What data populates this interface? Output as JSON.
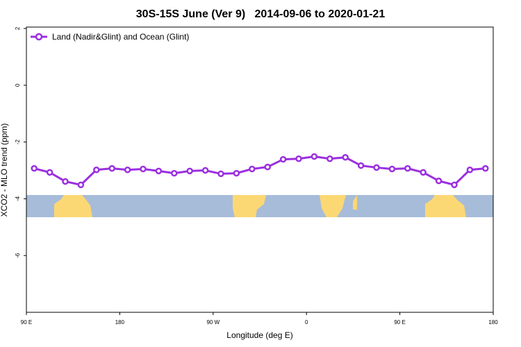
{
  "chart_data": {
    "type": "line",
    "title": "30S-15S June (Ver 9)   2014-09-06 to 2020-01-21",
    "x_label": "Longitude (deg E)",
    "y_label": "XCO2 - MLO trend (ppm)",
    "x": [
      97.5,
      112.5,
      127.5,
      142.5,
      157.5,
      172.5,
      187.5,
      202.5,
      217.5,
      232.5,
      247.5,
      262.5,
      277.5,
      292.5,
      307.5,
      322.5,
      337.5,
      352.5,
      367.5,
      382.5,
      397.5,
      412.5,
      427.5,
      442.5,
      457.5,
      472.5,
      487.5,
      502.5,
      517.5,
      532.5
    ],
    "series": [
      {
        "name": "Land (Nadir&Glint) and Ocean (Glint)",
        "color": "#9a2fe0",
        "values": [
          -2.93,
          -3.07,
          -3.39,
          -3.51,
          -2.98,
          -2.93,
          -2.98,
          -2.95,
          -3.02,
          -3.1,
          -3.02,
          -3.0,
          -3.12,
          -3.1,
          -2.95,
          -2.88,
          -2.61,
          -2.59,
          -2.51,
          -2.59,
          -2.54,
          -2.83,
          -2.9,
          -2.95,
          -2.93,
          -3.07,
          -3.37,
          -3.51,
          -2.98,
          -2.93
        ]
      }
    ],
    "xlim": [
      90,
      540
    ],
    "xticks": [
      {
        "value": 90,
        "label": "90 E"
      },
      {
        "value": 180,
        "label": "180"
      },
      {
        "value": 270,
        "label": "90 W"
      },
      {
        "value": 360,
        "label": "0"
      },
      {
        "value": 450,
        "label": "90 E"
      },
      {
        "value": 540,
        "label": "180"
      }
    ],
    "ylim": [
      -8,
      2.05
    ],
    "yticks": [
      -6,
      -4,
      -2,
      0,
      2
    ],
    "legend": "top-left"
  }
}
